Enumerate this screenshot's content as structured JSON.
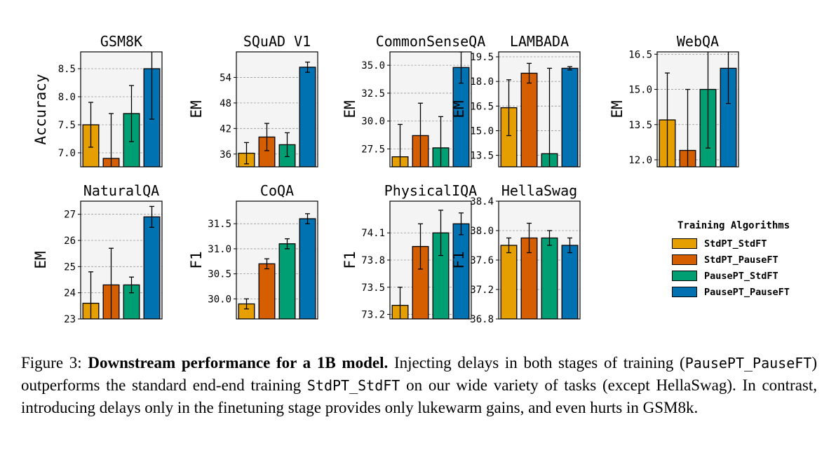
{
  "legend": {
    "title": "Training Algorithms",
    "items": [
      {
        "label": "StdPT_StdFT",
        "color": "#E69F00"
      },
      {
        "label": "StdPT_PauseFT",
        "color": "#D55E00"
      },
      {
        "label": "PausePT_StdFT",
        "color": "#009E73"
      },
      {
        "label": "PausePT_PauseFT",
        "color": "#0072B2"
      }
    ]
  },
  "caption": {
    "label": "Figure 3:",
    "bold": "Downstream performance for a 1B model.",
    "part1": "Injecting delays in both stages of training (",
    "code1": "PausePT_PauseFT",
    "part2": ") outperforms the standard end-end training",
    "code2": "StdPT_StdFT",
    "part3": "on our wide variety of tasks (except HellaSwag). In contrast, introducing delays only in the finetuning stage provides only lukewarm gains, and even hurts in GSM8k."
  },
  "chart_data": [
    {
      "type": "bar",
      "title": "GSM8K",
      "ylabel": "Accuracy",
      "categories": [
        "StdPT_StdFT",
        "StdPT_PauseFT",
        "PausePT_StdFT",
        "PausePT_PauseFT"
      ],
      "values": [
        7.5,
        6.9,
        7.7,
        8.5
      ],
      "errors": [
        0.4,
        0.8,
        0.5,
        0.9
      ],
      "ylim": [
        6.75,
        8.8
      ],
      "yticks": [
        7.0,
        7.5,
        8.0,
        8.5
      ],
      "yticklabels": [
        "7.0",
        "7.5",
        "8.0",
        "8.5"
      ],
      "grid": true
    },
    {
      "type": "bar",
      "title": "SQuAD V1",
      "ylabel": "EM",
      "categories": [
        "StdPT_StdFT",
        "StdPT_PauseFT",
        "PausePT_StdFT",
        "PausePT_PauseFT"
      ],
      "values": [
        36.2,
        40.0,
        38.2,
        56.4
      ],
      "errors": [
        2.5,
        3.2,
        2.8,
        1.2
      ],
      "ylim": [
        33,
        60
      ],
      "yticks": [
        36,
        42,
        48,
        54
      ],
      "yticklabels": [
        "36",
        "42",
        "48",
        "54"
      ],
      "grid": true
    },
    {
      "type": "bar",
      "title": "CommonSenseQA",
      "ylabel": "EM",
      "categories": [
        "StdPT_StdFT",
        "StdPT_PauseFT",
        "PausePT_StdFT",
        "PausePT_PauseFT"
      ],
      "values": [
        26.8,
        28.7,
        27.6,
        34.8
      ],
      "errors": [
        2.9,
        2.9,
        2.8,
        1.4
      ],
      "ylim": [
        25.9,
        36.2
      ],
      "yticks": [
        27.5,
        30.0,
        32.5,
        35.0
      ],
      "yticklabels": [
        "27.5",
        "30.0",
        "32.5",
        "35.0"
      ],
      "grid": true
    },
    {
      "type": "bar",
      "title": "LAMBADA",
      "ylabel": "EM",
      "categories": [
        "StdPT_StdFT",
        "StdPT_PauseFT",
        "PausePT_StdFT",
        "PausePT_PauseFT"
      ],
      "values": [
        16.4,
        18.5,
        13.6,
        18.8
      ],
      "errors": [
        1.7,
        0.6,
        5.2,
        0.1
      ],
      "ylim": [
        12.8,
        19.8
      ],
      "yticks": [
        13.5,
        15.0,
        16.5,
        18.0,
        19.5
      ],
      "yticklabels": [
        "13.5",
        "15.0",
        "16.5",
        "18.0",
        "19.5"
      ],
      "grid": true
    },
    {
      "type": "bar",
      "title": "WebQA",
      "ylabel": "EM",
      "categories": [
        "StdPT_StdFT",
        "StdPT_PauseFT",
        "PausePT_StdFT",
        "PausePT_PauseFT"
      ],
      "values": [
        13.7,
        12.4,
        15.0,
        15.9
      ],
      "errors": [
        2.0,
        2.6,
        2.5,
        1.5
      ],
      "ylim": [
        11.7,
        16.6
      ],
      "yticks": [
        12.0,
        13.5,
        15.0,
        16.5
      ],
      "yticklabels": [
        "12.0",
        "13.5",
        "15.0",
        "16.5"
      ],
      "grid": true
    },
    {
      "type": "bar",
      "title": "NaturalQA",
      "ylabel": "EM",
      "categories": [
        "StdPT_StdFT",
        "StdPT_PauseFT",
        "PausePT_StdFT",
        "PausePT_PauseFT"
      ],
      "values": [
        23.6,
        24.3,
        24.3,
        26.9
      ],
      "errors": [
        1.2,
        1.4,
        0.3,
        0.4
      ],
      "ylim": [
        23.0,
        27.5
      ],
      "yticks": [
        23,
        24,
        25,
        26,
        27
      ],
      "yticklabels": [
        "23",
        "24",
        "25",
        "26",
        "27"
      ],
      "grid": true
    },
    {
      "type": "bar",
      "title": "CoQA",
      "ylabel": "F1",
      "categories": [
        "StdPT_StdFT",
        "StdPT_PauseFT",
        "PausePT_StdFT",
        "PausePT_PauseFT"
      ],
      "values": [
        29.9,
        30.7,
        31.1,
        31.6
      ],
      "errors": [
        0.1,
        0.1,
        0.1,
        0.1
      ],
      "ylim": [
        29.6,
        31.95
      ],
      "yticks": [
        30.0,
        30.5,
        31.0,
        31.5
      ],
      "yticklabels": [
        "30.0",
        "30.5",
        "31.0",
        "31.5"
      ],
      "grid": true
    },
    {
      "type": "bar",
      "title": "PhysicalIQA",
      "ylabel": "F1",
      "categories": [
        "StdPT_StdFT",
        "StdPT_PauseFT",
        "PausePT_StdFT",
        "PausePT_PauseFT"
      ],
      "values": [
        73.3,
        73.95,
        74.1,
        74.2
      ],
      "errors": [
        0.2,
        0.25,
        0.25,
        0.12
      ],
      "ylim": [
        73.15,
        74.45
      ],
      "yticks": [
        73.2,
        73.5,
        73.8,
        74.1
      ],
      "yticklabels": [
        "73.2",
        "73.5",
        "73.8",
        "74.1"
      ],
      "grid": true
    },
    {
      "type": "bar",
      "title": "HellaSwag",
      "ylabel": "F1",
      "categories": [
        "StdPT_StdFT",
        "StdPT_PauseFT",
        "PausePT_StdFT",
        "PausePT_PauseFT"
      ],
      "values": [
        37.8,
        37.9,
        37.9,
        37.8
      ],
      "errors": [
        0.1,
        0.2,
        0.1,
        0.1
      ],
      "ylim": [
        36.8,
        38.4
      ],
      "yticks": [
        36.8,
        37.2,
        37.6,
        38.0,
        38.4
      ],
      "yticklabels": [
        "36.8",
        "37.2",
        "37.6",
        "38.0",
        "38.4"
      ],
      "grid": true
    }
  ]
}
